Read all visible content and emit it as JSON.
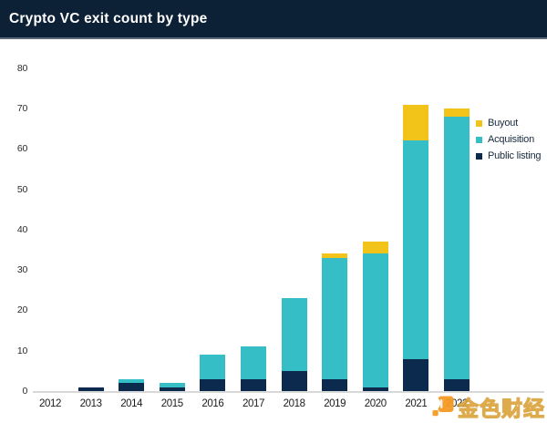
{
  "header": {
    "title": "Crypto VC exit count by type"
  },
  "colors": {
    "header_bg": "#0d2136",
    "buyout": "#f2c318",
    "acquisition": "#35bec6",
    "public_listing": "#0c2a4d",
    "axis_line": "#d8d8d8",
    "watermark_orange": "#f59a23",
    "watermark_gold": "#d89c2f"
  },
  "legend": [
    {
      "label": "Buyout",
      "color": "#f2c318"
    },
    {
      "label": "Acquisition",
      "color": "#35bec6"
    },
    {
      "label": "Public listing",
      "color": "#0c2a4d"
    }
  ],
  "chart_data": {
    "type": "bar",
    "stacked": true,
    "title": "Crypto VC exit count by type",
    "xlabel": "",
    "ylabel": "",
    "grid": false,
    "legend_position": "top-right",
    "ylim": [
      0,
      80
    ],
    "yticks": [
      0,
      10,
      20,
      30,
      40,
      50,
      60,
      70,
      80
    ],
    "categories": [
      "2012",
      "2013",
      "2014",
      "2015",
      "2016",
      "2017",
      "2018",
      "2019",
      "2020",
      "2021",
      "2022"
    ],
    "series": [
      {
        "name": "Public listing",
        "color": "#0c2a4d",
        "values": [
          0,
          1,
          2,
          1,
          3,
          3,
          5,
          3,
          1,
          8,
          3
        ]
      },
      {
        "name": "Acquisition",
        "color": "#35bec6",
        "values": [
          0,
          0,
          1,
          1,
          6,
          8,
          18,
          30,
          33,
          54,
          65
        ]
      },
      {
        "name": "Buyout",
        "color": "#f2c318",
        "values": [
          0,
          0,
          0,
          0,
          0,
          0,
          0,
          1,
          3,
          9,
          2
        ]
      }
    ],
    "totals": [
      0,
      1,
      3,
      2,
      9,
      11,
      23,
      34,
      37,
      71,
      70
    ]
  },
  "watermark": {
    "text": "金色财经"
  }
}
